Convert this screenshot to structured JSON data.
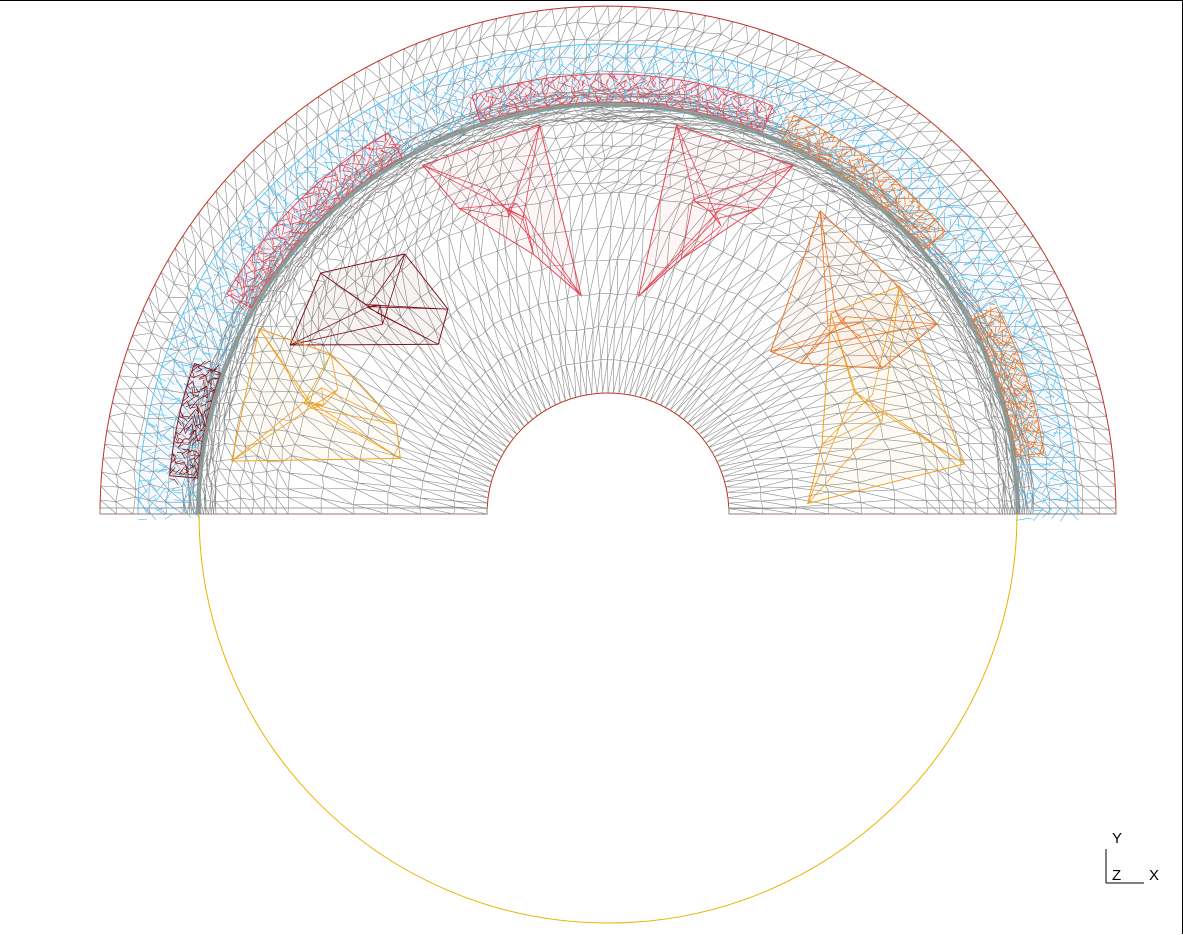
{
  "axis_triad": {
    "y": "Y",
    "z": "Z",
    "x": "X"
  },
  "colors": {
    "background": "#ffffff",
    "mesh": "#8c8c8c",
    "outer_boundary": "#c0392b",
    "airgap_circle": "#e8b400",
    "sky": "#4fc3f7",
    "red": "#e8404f",
    "dark_red": "#7b0f1a",
    "orange": "#f07020",
    "amber": "#f0a020"
  }
}
